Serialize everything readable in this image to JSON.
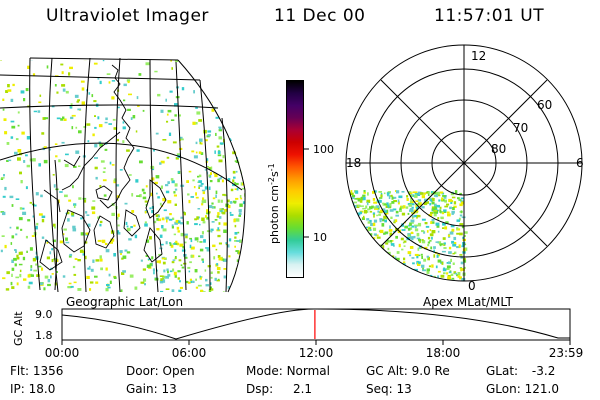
{
  "header": {
    "instrument": "Ultraviolet Imager",
    "date": "11 Dec 00",
    "time": "11:57:01 UT"
  },
  "colorbar": {
    "label": "photon cm^-2 s^-1",
    "label_main": "photon cm",
    "label_sup1": "-2",
    "label_mid": "s",
    "label_sup2": "-1",
    "ticks": [
      {
        "label": "100",
        "value": 100
      },
      {
        "label": "10",
        "value": 10
      }
    ],
    "colors": [
      "#ffffff",
      "#d9f2f2",
      "#66dddd",
      "#33cc99",
      "#66dd33",
      "#aadd00",
      "#eeee00",
      "#ffcc00",
      "#ff9900",
      "#ff5500",
      "#ee1100",
      "#cc0000",
      "#aa0033",
      "#660055",
      "#440066",
      "#220044",
      "#000000"
    ]
  },
  "geo_panel": {
    "caption": "Geographic Lat/Lon"
  },
  "polar_panel": {
    "caption": "Apex MLat/MLT",
    "lat_labels": [
      "60",
      "70",
      "80"
    ],
    "mlt_labels": {
      "top": "12",
      "left": "18",
      "right": "6",
      "bottom": "0"
    }
  },
  "altitude_strip": {
    "axis_label": "GC Alt",
    "y_ticks": [
      "9.0",
      "1.8"
    ],
    "x_ticks": [
      "00:00",
      "06:00",
      "12:00",
      "18:00",
      "23:59"
    ],
    "current_time_hours": 11.95
  },
  "info": {
    "row1": [
      {
        "label": "Flt:",
        "value": "1356"
      },
      {
        "label": "Door:",
        "value": "Open"
      },
      {
        "label": "Mode:",
        "value": "Normal"
      },
      {
        "label": "GC Alt:",
        "value": "9.0 Re"
      },
      {
        "label": "GLat:",
        "value": "-3.2"
      }
    ],
    "row2": [
      {
        "label": "IP:",
        "value": "18.0"
      },
      {
        "label": "Gain:",
        "value": "13"
      },
      {
        "label": "Dsp:",
        "value": "2.1"
      },
      {
        "label": "Seq:",
        "value": "13"
      },
      {
        "label": "GLon:",
        "value": "121.0"
      }
    ]
  },
  "accent": {
    "marker": "#ff0000",
    "aurora_green": "#66dd33",
    "aurora_cyan": "#33cccc"
  }
}
